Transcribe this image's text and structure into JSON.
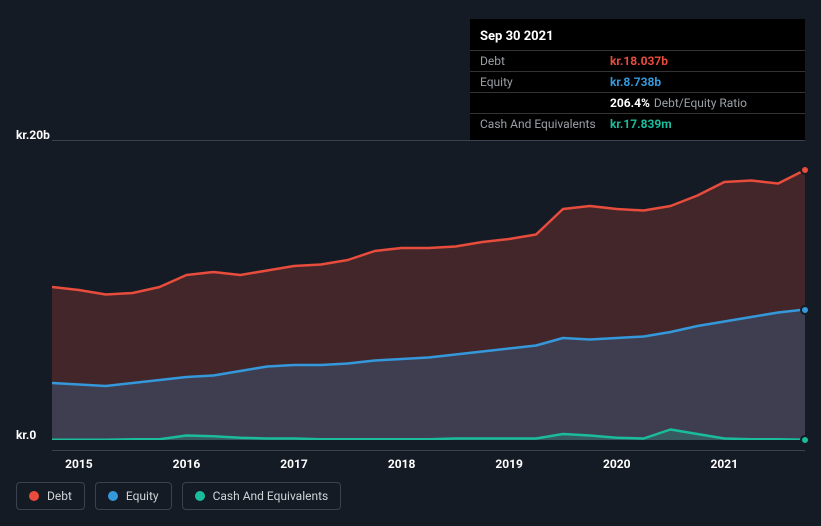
{
  "tooltip": {
    "date": "Sep 30 2021",
    "rows": [
      {
        "label": "Debt",
        "value": "kr.18.037b",
        "color": "#e74c3c"
      },
      {
        "label": "Equity",
        "value": "kr.8.738b",
        "color": "#3498db"
      },
      {
        "label": "",
        "value": "206.4%",
        "extra": "Debt/Equity Ratio",
        "color": "#ffffff"
      },
      {
        "label": "Cash And Equivalents",
        "value": "kr.17.839m",
        "color": "#1abc9c"
      }
    ]
  },
  "chart": {
    "type": "area",
    "background_color": "#151b24",
    "grid_color": "#3a4250",
    "ylim": [
      0,
      20
    ],
    "y_axis_labels": [
      {
        "value": 20,
        "text": "kr.20b"
      },
      {
        "value": 0,
        "text": "kr.0"
      }
    ],
    "x_years": [
      2015,
      2016,
      2017,
      2018,
      2019,
      2020,
      2021
    ],
    "x_range": [
      2014.75,
      2021.75
    ],
    "line_width": 2.5,
    "fill_opacity": 0.22,
    "series": [
      {
        "name": "Debt",
        "color": "#e74c3c",
        "points": [
          [
            2014.75,
            10.2
          ],
          [
            2015.0,
            10.0
          ],
          [
            2015.25,
            9.7
          ],
          [
            2015.5,
            9.8
          ],
          [
            2015.75,
            10.2
          ],
          [
            2016.0,
            11.0
          ],
          [
            2016.25,
            11.2
          ],
          [
            2016.5,
            11.0
          ],
          [
            2016.75,
            11.3
          ],
          [
            2017.0,
            11.6
          ],
          [
            2017.25,
            11.7
          ],
          [
            2017.5,
            12.0
          ],
          [
            2017.75,
            12.6
          ],
          [
            2018.0,
            12.8
          ],
          [
            2018.25,
            12.8
          ],
          [
            2018.5,
            12.9
          ],
          [
            2018.75,
            13.2
          ],
          [
            2019.0,
            13.4
          ],
          [
            2019.25,
            13.7
          ],
          [
            2019.5,
            15.4
          ],
          [
            2019.75,
            15.6
          ],
          [
            2020.0,
            15.4
          ],
          [
            2020.25,
            15.3
          ],
          [
            2020.5,
            15.6
          ],
          [
            2020.75,
            16.3
          ],
          [
            2021.0,
            17.2
          ],
          [
            2021.25,
            17.3
          ],
          [
            2021.5,
            17.1
          ],
          [
            2021.75,
            18.0
          ]
        ]
      },
      {
        "name": "Equity",
        "color": "#3498db",
        "points": [
          [
            2014.75,
            3.8
          ],
          [
            2015.0,
            3.7
          ],
          [
            2015.25,
            3.6
          ],
          [
            2015.5,
            3.8
          ],
          [
            2015.75,
            4.0
          ],
          [
            2016.0,
            4.2
          ],
          [
            2016.25,
            4.3
          ],
          [
            2016.5,
            4.6
          ],
          [
            2016.75,
            4.9
          ],
          [
            2017.0,
            5.0
          ],
          [
            2017.25,
            5.0
          ],
          [
            2017.5,
            5.1
          ],
          [
            2017.75,
            5.3
          ],
          [
            2018.0,
            5.4
          ],
          [
            2018.25,
            5.5
          ],
          [
            2018.5,
            5.7
          ],
          [
            2018.75,
            5.9
          ],
          [
            2019.0,
            6.1
          ],
          [
            2019.25,
            6.3
          ],
          [
            2019.5,
            6.8
          ],
          [
            2019.75,
            6.7
          ],
          [
            2020.0,
            6.8
          ],
          [
            2020.25,
            6.9
          ],
          [
            2020.5,
            7.2
          ],
          [
            2020.75,
            7.6
          ],
          [
            2021.0,
            7.9
          ],
          [
            2021.25,
            8.2
          ],
          [
            2021.5,
            8.5
          ],
          [
            2021.75,
            8.7
          ]
        ]
      },
      {
        "name": "Cash And Equivalents",
        "color": "#1abc9c",
        "points": [
          [
            2014.75,
            0.02
          ],
          [
            2015.0,
            0.02
          ],
          [
            2015.25,
            0.02
          ],
          [
            2015.5,
            0.05
          ],
          [
            2015.75,
            0.05
          ],
          [
            2016.0,
            0.3
          ],
          [
            2016.25,
            0.25
          ],
          [
            2016.5,
            0.15
          ],
          [
            2016.75,
            0.1
          ],
          [
            2017.0,
            0.1
          ],
          [
            2017.25,
            0.05
          ],
          [
            2017.5,
            0.05
          ],
          [
            2017.75,
            0.05
          ],
          [
            2018.0,
            0.05
          ],
          [
            2018.25,
            0.05
          ],
          [
            2018.5,
            0.1
          ],
          [
            2018.75,
            0.1
          ],
          [
            2019.0,
            0.1
          ],
          [
            2019.25,
            0.1
          ],
          [
            2019.5,
            0.4
          ],
          [
            2019.75,
            0.3
          ],
          [
            2020.0,
            0.15
          ],
          [
            2020.25,
            0.1
          ],
          [
            2020.5,
            0.7
          ],
          [
            2020.75,
            0.4
          ],
          [
            2021.0,
            0.1
          ],
          [
            2021.25,
            0.05
          ],
          [
            2021.5,
            0.05
          ],
          [
            2021.75,
            0.02
          ]
        ]
      }
    ],
    "legend": [
      {
        "label": "Debt",
        "color": "#e74c3c"
      },
      {
        "label": "Equity",
        "color": "#3498db"
      },
      {
        "label": "Cash And Equivalents",
        "color": "#1abc9c"
      }
    ]
  }
}
